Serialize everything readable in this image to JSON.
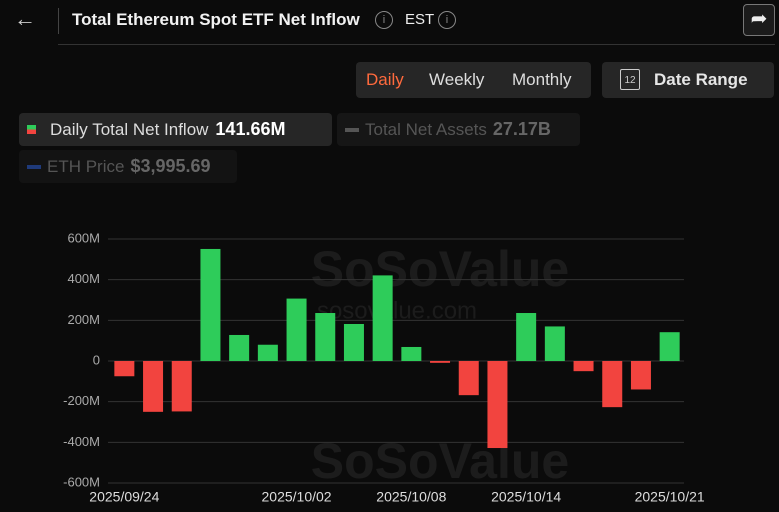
{
  "ui": {
    "title": "Total Ethereum Spot ETF Net Inflow",
    "timezone": "EST",
    "periods": [
      "Daily",
      "Weekly",
      "Monthly"
    ],
    "date_range": "Date Range",
    "calendar_day": "12",
    "legend": [
      {
        "name": "Daily Total Net Inflow",
        "value": "141.66M"
      },
      {
        "name": "Total Net Assets",
        "value": "27.17B"
      },
      {
        "name": "ETH Price",
        "value": "$3,995.69"
      }
    ],
    "watermark": [
      "SoSoValue",
      "sosovalue.com"
    ]
  },
  "chart_data": {
    "type": "bar",
    "categories": [
      "2025/09/24",
      null,
      null,
      null,
      null,
      null,
      "2025/10/02",
      null,
      null,
      null,
      "2025/10/08",
      null,
      null,
      null,
      "2025/10/14",
      null,
      null,
      null,
      null,
      "2025/10/21"
    ],
    "series": [
      {
        "name": "Daily Total Net Inflow",
        "color": "#2ecc5a",
        "negative_color": "#f2443f",
        "values": [
          -75,
          -250,
          -248,
          551,
          128,
          80,
          307,
          236,
          182,
          421,
          69,
          -9,
          -168,
          -428,
          236,
          170,
          -50,
          -227,
          -140,
          141.66
        ]
      }
    ],
    "ylim": [
      -600,
      600
    ],
    "yticks": [
      {
        "value": -600,
        "label": "-600M"
      },
      {
        "value": -400,
        "label": "-400M"
      },
      {
        "value": -200,
        "label": "-200M"
      },
      0,
      {
        "value": 200,
        "label": "200M"
      },
      {
        "value": 400,
        "label": "400M"
      },
      {
        "value": 600,
        "label": "600M"
      }
    ],
    "grid": true
  }
}
